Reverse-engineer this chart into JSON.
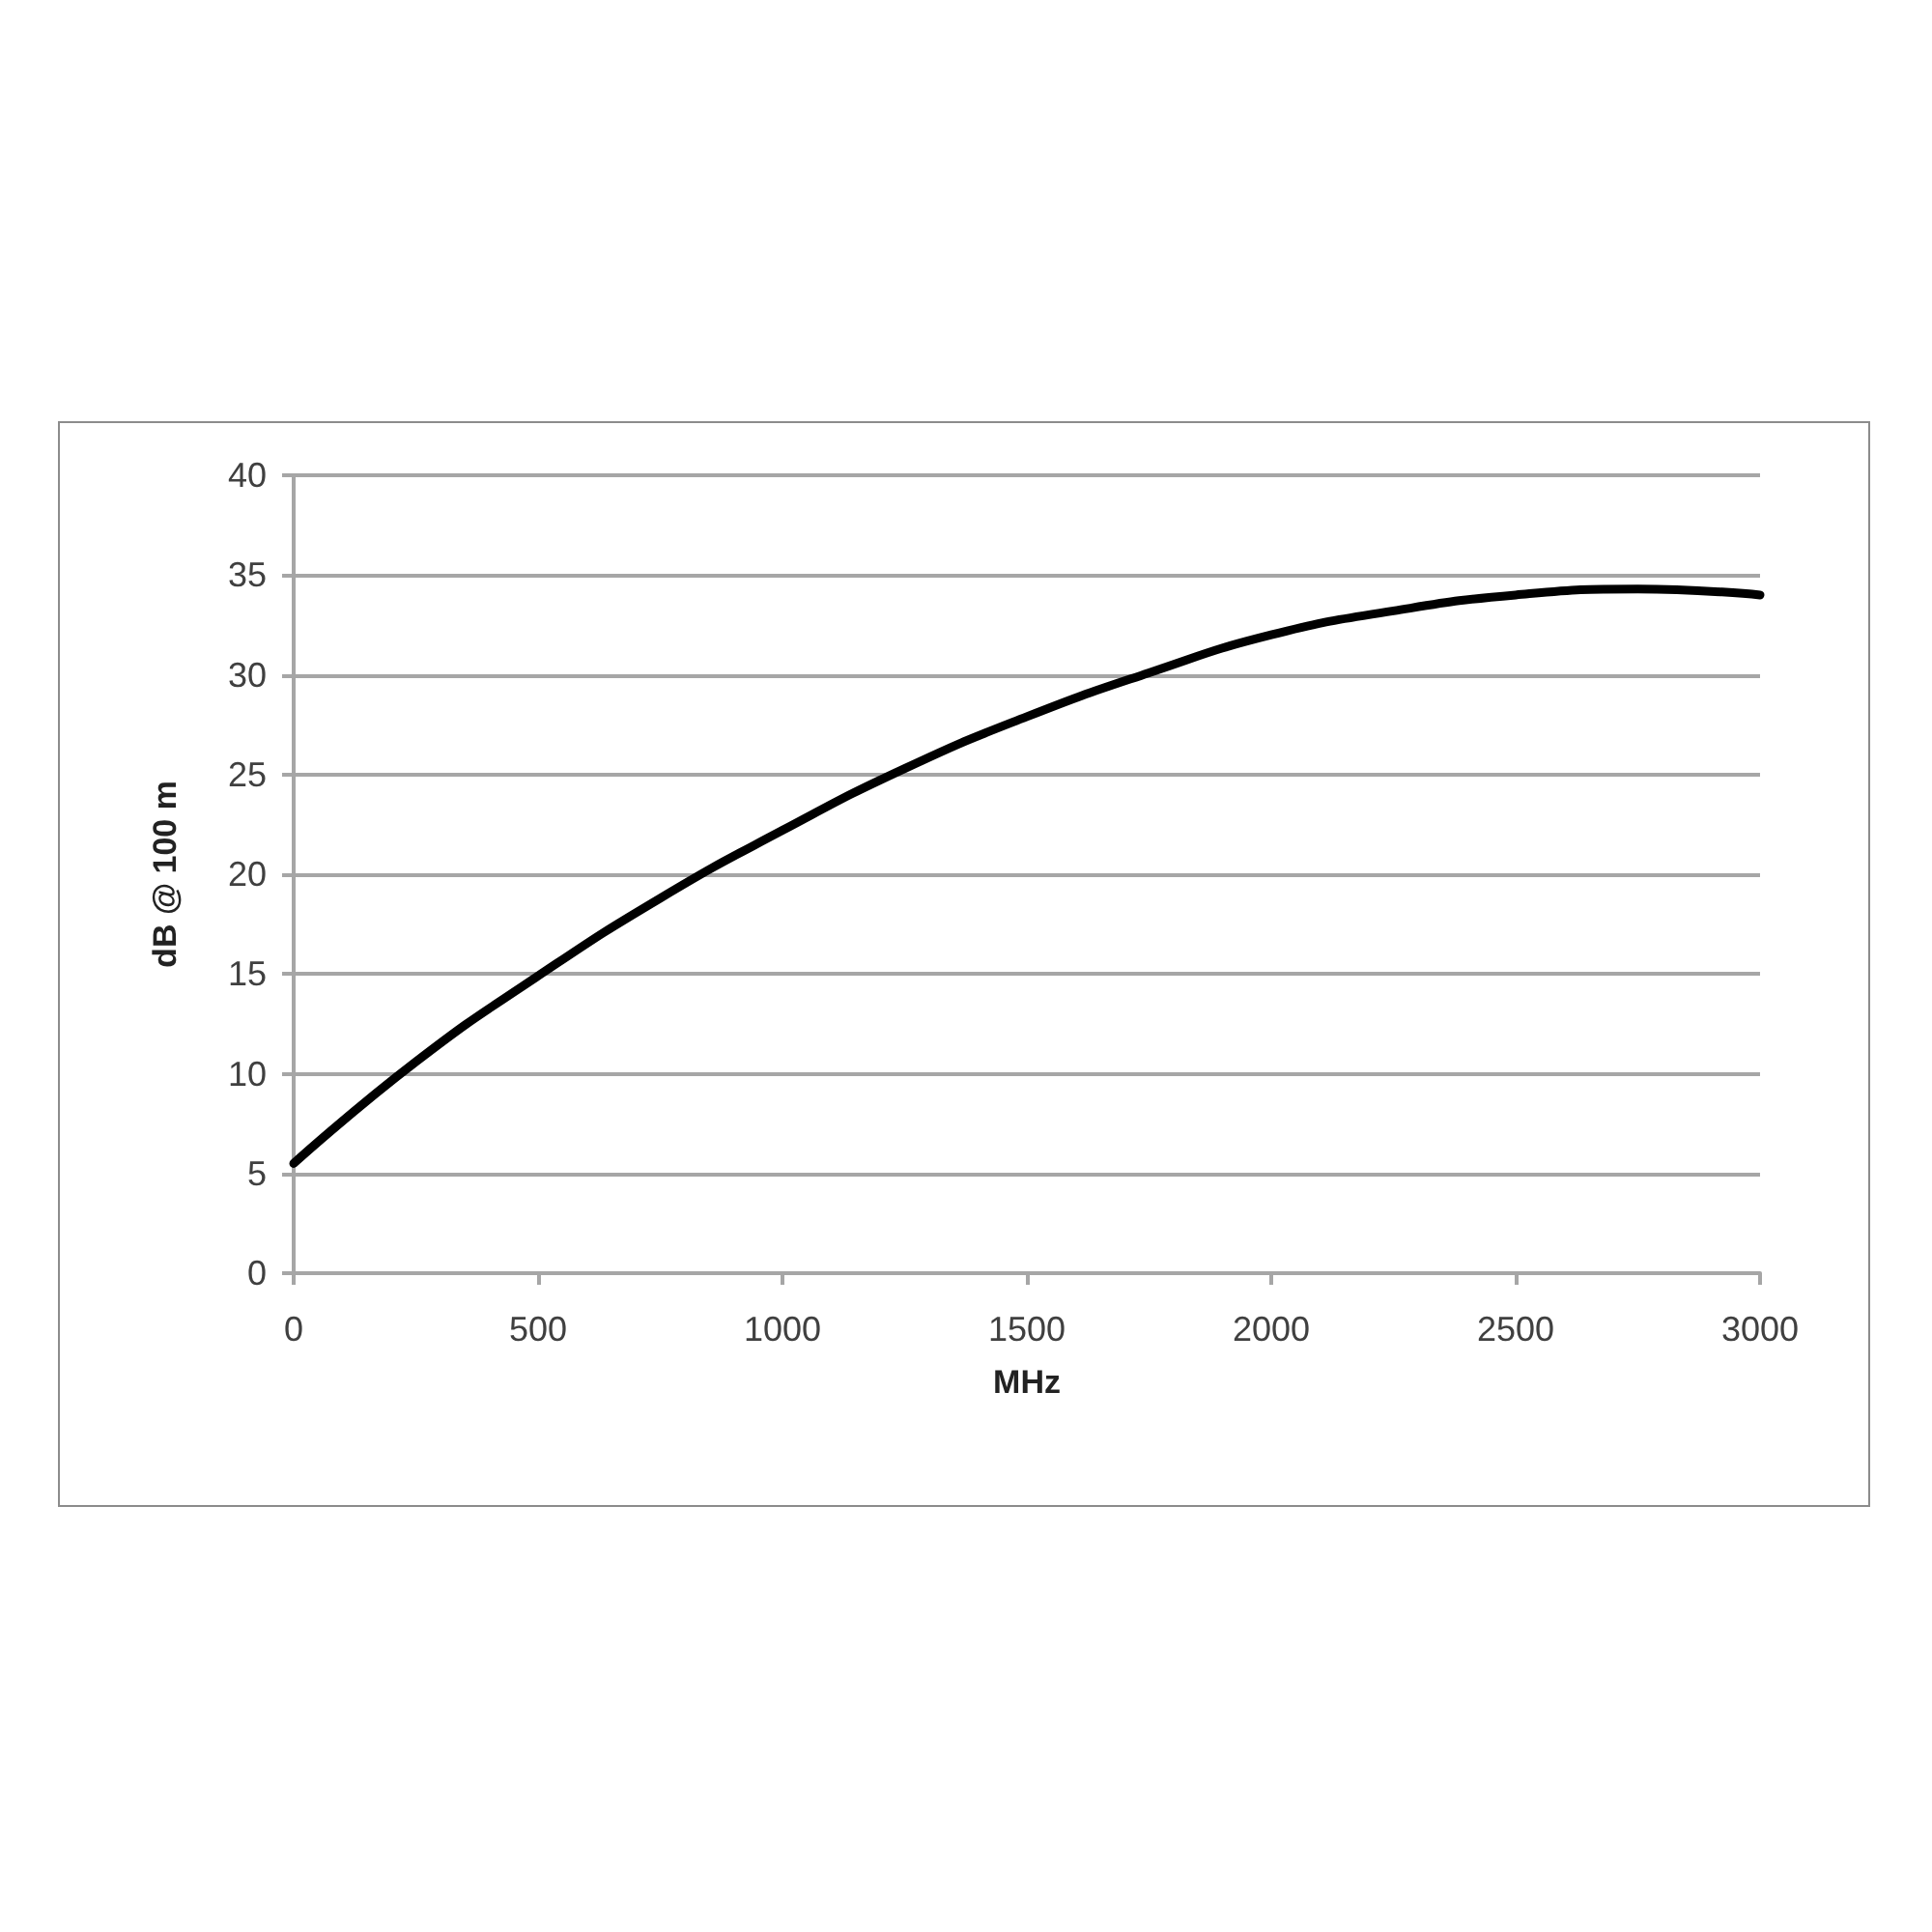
{
  "chart_data": {
    "type": "line",
    "xlabel": "MHz",
    "ylabel": "dB @ 100 m",
    "x": [
      0,
      250,
      500,
      750,
      1000,
      1250,
      1500,
      1750,
      2000,
      2250,
      2500,
      2750,
      3000
    ],
    "values": [
      5.5,
      10.6,
      14.9,
      18.8,
      22.2,
      25.3,
      27.9,
      30.1,
      32.0,
      33.2,
      34.0,
      34.3,
      34.0
    ],
    "color": "#000000",
    "marker": "none",
    "line_style": "solid",
    "grid": "y",
    "xlim": [
      0,
      3000
    ],
    "xticks": [
      0,
      500,
      1000,
      1500,
      2000,
      2500,
      3000
    ],
    "ylim": [
      0,
      40
    ],
    "yticks": [
      0,
      5,
      10,
      15,
      20,
      25,
      30,
      35,
      40
    ]
  }
}
